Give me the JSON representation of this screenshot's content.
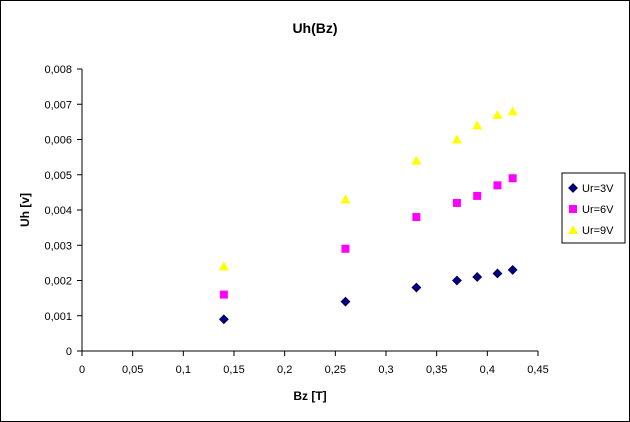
{
  "chart_data": {
    "type": "scatter",
    "title": "Uh(Bz)",
    "xlabel": "Bz [T]",
    "ylabel": "Uh [v]",
    "xlim": [
      0,
      0.45
    ],
    "ylim": [
      0,
      0.008
    ],
    "x_ticks": [
      0,
      0.05,
      0.1,
      0.15,
      0.2,
      0.25,
      0.3,
      0.35,
      0.4,
      0.45
    ],
    "x_tick_labels": [
      "0",
      "0,05",
      "0,1",
      "0,15",
      "0,2",
      "0,25",
      "0,3",
      "0,35",
      "0,4",
      "0,45"
    ],
    "y_ticks": [
      0,
      0.001,
      0.002,
      0.003,
      0.004,
      0.005,
      0.006,
      0.007,
      0.008
    ],
    "y_tick_labels": [
      "0",
      "0,001",
      "0,002",
      "0,003",
      "0,004",
      "0,005",
      "0,006",
      "0,007",
      "0,008"
    ],
    "grid": false,
    "legend_position": "right",
    "series": [
      {
        "name": "Ur=3V",
        "marker": "diamond",
        "color": "#000080",
        "x": [
          0.14,
          0.26,
          0.33,
          0.37,
          0.39,
          0.41,
          0.425
        ],
        "y": [
          0.0009,
          0.0014,
          0.0018,
          0.002,
          0.0021,
          0.0022,
          0.0023
        ]
      },
      {
        "name": "Ur=6V",
        "marker": "square",
        "color": "#ff00ff",
        "x": [
          0.14,
          0.26,
          0.33,
          0.37,
          0.39,
          0.41,
          0.425
        ],
        "y": [
          0.0016,
          0.0029,
          0.0038,
          0.0042,
          0.0044,
          0.0047,
          0.0049
        ]
      },
      {
        "name": "Ur=9V",
        "marker": "triangle",
        "color": "#ffff00",
        "x": [
          0.14,
          0.26,
          0.33,
          0.37,
          0.39,
          0.41,
          0.425
        ],
        "y": [
          0.0024,
          0.0043,
          0.0054,
          0.006,
          0.0064,
          0.0067,
          0.0068
        ]
      }
    ]
  }
}
